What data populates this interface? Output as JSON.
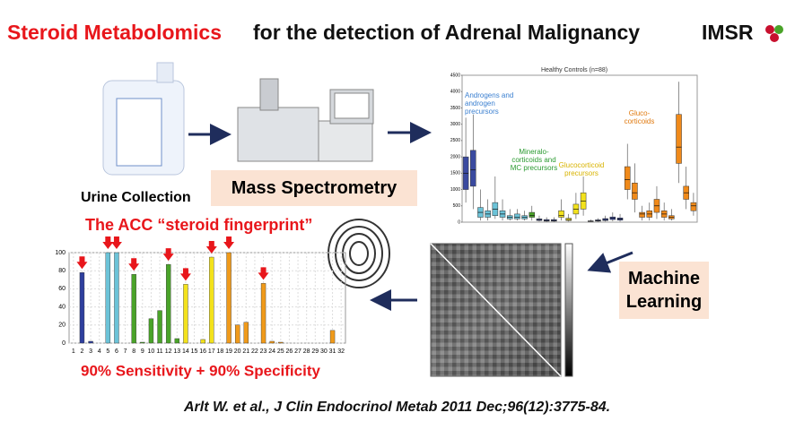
{
  "title": {
    "highlight": "Steroid Metabolomics",
    "rest": "for the detection of Adrenal Malignancy"
  },
  "logo": "IMSR",
  "steps": {
    "urine": "Urine Collection",
    "ms": "Mass Spectrometry",
    "ml": "Machine Learning"
  },
  "fingerprint_title": "The ACC “steroid fingerprint”",
  "result": "90% Sensitivity + 90% Specificity",
  "citation": "Arlt W. et al., J Clin Endocrinol Metab 2011 Dec;96(12):3775-84.",
  "fingerprint_chart": {
    "type": "bar",
    "categories": [
      1,
      2,
      3,
      4,
      5,
      6,
      7,
      8,
      9,
      10,
      11,
      12,
      13,
      14,
      15,
      16,
      17,
      18,
      19,
      20,
      21,
      22,
      23,
      24,
      25,
      26,
      27,
      28,
      29,
      30,
      31,
      32
    ],
    "values": [
      0,
      78,
      2,
      0,
      100,
      100,
      0,
      76,
      1,
      27,
      36,
      87,
      5,
      65,
      0,
      4,
      95,
      0,
      100,
      20,
      23,
      0,
      66,
      2,
      1,
      0,
      0,
      0,
      0,
      0,
      14,
      0
    ],
    "colors": [
      "#2e3f9e",
      "#2e3f9e",
      "#2e3f9e",
      "#6cc3d8",
      "#6cc3d8",
      "#6cc3d8",
      "#6cc3d8",
      "#4aa329",
      "#4aa329",
      "#4aa329",
      "#4aa329",
      "#4aa329",
      "#4aa329",
      "#f3e21c",
      "#f3e21c",
      "#f3e21c",
      "#f3e21c",
      "#f09a1a",
      "#f09a1a",
      "#f09a1a",
      "#f09a1a",
      "#f09a1a",
      "#f09a1a",
      "#f09a1a",
      "#f09a1a",
      "#f09a1a",
      "#f09a1a",
      "#f09a1a",
      "#f09a1a",
      "#f09a1a",
      "#f09a1a",
      "#f09a1a"
    ],
    "arrow_categories": [
      2,
      5,
      6,
      8,
      12,
      14,
      17,
      19,
      23
    ],
    "ylim": [
      0,
      100
    ],
    "yticks": [
      0,
      20,
      40,
      60,
      80,
      100
    ],
    "grid": true
  },
  "boxplot": {
    "type": "box",
    "title": "Healthy Controls (n=88)",
    "annotations": [
      "Androgens and androgen precursors",
      "Mineralo-corticoids and MC precursors",
      "Glucocorticoid precursors",
      "Gluco-corticoids"
    ],
    "ylim": [
      0,
      4500
    ],
    "yticks": [
      0,
      500,
      1000,
      1500,
      2000,
      2500,
      3000,
      3500,
      4000,
      4500
    ],
    "boxes": [
      [
        600,
        1000,
        1500,
        2000,
        3200
      ],
      [
        400,
        1100,
        1600,
        2200,
        3300
      ],
      [
        50,
        150,
        300,
        450,
        1000
      ],
      [
        50,
        150,
        250,
        350,
        700
      ],
      [
        100,
        200,
        400,
        600,
        1400
      ],
      [
        50,
        150,
        250,
        350,
        700
      ],
      [
        50,
        100,
        150,
        200,
        400
      ],
      [
        50,
        100,
        150,
        250,
        400
      ],
      [
        50,
        100,
        150,
        200,
        350
      ],
      [
        50,
        150,
        200,
        300,
        500
      ],
      [
        20,
        50,
        80,
        100,
        200
      ],
      [
        10,
        30,
        50,
        80,
        150
      ],
      [
        10,
        30,
        50,
        80,
        150
      ],
      [
        50,
        150,
        200,
        350,
        700
      ],
      [
        20,
        50,
        80,
        120,
        250
      ],
      [
        100,
        250,
        400,
        550,
        900
      ],
      [
        200,
        400,
        650,
        900,
        1400
      ],
      [
        10,
        20,
        30,
        40,
        80
      ],
      [
        10,
        30,
        50,
        70,
        120
      ],
      [
        20,
        50,
        80,
        110,
        200
      ],
      [
        30,
        80,
        120,
        160,
        300
      ],
      [
        20,
        60,
        100,
        130,
        250
      ],
      [
        700,
        1000,
        1300,
        1700,
        2400
      ],
      [
        300,
        700,
        900,
        1200,
        1800
      ],
      [
        50,
        150,
        250,
        300,
        500
      ],
      [
        50,
        150,
        250,
        350,
        600
      ],
      [
        100,
        300,
        500,
        700,
        1100
      ],
      [
        50,
        150,
        250,
        350,
        600
      ],
      [
        50,
        100,
        150,
        200,
        400
      ],
      [
        1200,
        1800,
        2300,
        3300,
        4300
      ],
      [
        400,
        700,
        900,
        1100,
        1700
      ],
      [
        200,
        350,
        500,
        600,
        900
      ]
    ],
    "colors": [
      "#3a4aa0",
      "#3a4aa0",
      "#6cc3d8",
      "#6cc3d8",
      "#6cc3d8",
      "#6cc3d8",
      "#6cc3d8",
      "#6cc3d8",
      "#6cc3d8",
      "#4aa329",
      "#3a4aa0",
      "#3a4aa0",
      "#3a4aa0",
      "#f3e21c",
      "#f3e21c",
      "#f3e21c",
      "#f3e21c",
      "#3a4aa0",
      "#3a4aa0",
      "#3a4aa0",
      "#3a4aa0",
      "#3a4aa0",
      "#f08a1a",
      "#f08a1a",
      "#f08a1a",
      "#f08a1a",
      "#f08a1a",
      "#f08a1a",
      "#f08a1a",
      "#f08a1a",
      "#f08a1a",
      "#f08a1a"
    ]
  }
}
